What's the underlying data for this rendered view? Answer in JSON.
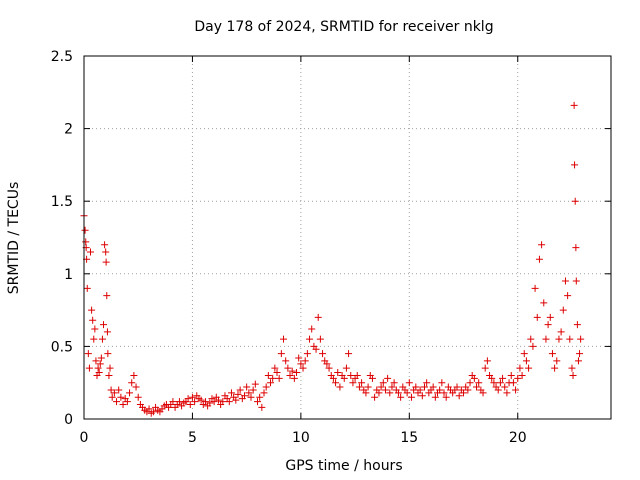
{
  "chart_data": {
    "type": "scatter",
    "title": "Day 178 of 2024, SRMTID for receiver nklg",
    "xlabel": "GPS time / hours",
    "ylabel": "SRMTID / TECUs",
    "xlim": [
      0,
      24.3
    ],
    "ylim": [
      0,
      2.5
    ],
    "x_ticks": [
      {
        "value": 0,
        "label": "0"
      },
      {
        "value": 5,
        "label": "5"
      },
      {
        "value": 10,
        "label": "10"
      },
      {
        "value": 15,
        "label": "15"
      },
      {
        "value": 20,
        "label": "20"
      }
    ],
    "y_ticks": [
      {
        "value": 0,
        "label": "0"
      },
      {
        "value": 0.5,
        "label": "0.5"
      },
      {
        "value": 1,
        "label": "1"
      },
      {
        "value": 1.5,
        "label": "1.5"
      },
      {
        "value": 2,
        "label": "2"
      },
      {
        "value": 2.5,
        "label": "2.5"
      }
    ],
    "grid": true,
    "marker": "+",
    "series": [
      {
        "name": "SRMTID",
        "color": "#dd0000",
        "x": [
          0.0,
          0.05,
          0.08,
          0.1,
          0.12,
          0.15,
          0.2,
          0.25,
          0.3,
          0.35,
          0.4,
          0.45,
          0.5,
          0.55,
          0.6,
          0.65,
          0.7,
          0.75,
          0.8,
          0.85,
          0.9,
          0.95,
          1.0,
          1.02,
          1.05,
          1.08,
          1.1,
          1.15,
          1.2,
          1.25,
          1.3,
          1.4,
          1.5,
          1.6,
          1.7,
          1.8,
          1.9,
          2.0,
          2.1,
          2.2,
          2.3,
          2.4,
          2.5,
          2.6,
          2.7,
          2.8,
          2.9,
          3.0,
          3.1,
          3.2,
          3.3,
          3.4,
          3.5,
          3.6,
          3.7,
          3.8,
          3.9,
          4.0,
          4.1,
          4.2,
          4.3,
          4.4,
          4.5,
          4.6,
          4.7,
          4.8,
          4.9,
          5.0,
          5.1,
          5.2,
          5.3,
          5.4,
          5.5,
          5.6,
          5.7,
          5.8,
          5.9,
          6.0,
          6.1,
          6.2,
          6.3,
          6.4,
          6.5,
          6.6,
          6.7,
          6.8,
          6.9,
          7.0,
          7.1,
          7.2,
          7.3,
          7.4,
          7.5,
          7.6,
          7.7,
          7.8,
          7.9,
          8.0,
          8.1,
          8.2,
          8.3,
          8.4,
          8.5,
          8.6,
          8.7,
          8.8,
          8.9,
          9.0,
          9.1,
          9.2,
          9.3,
          9.4,
          9.5,
          9.6,
          9.7,
          9.8,
          9.9,
          10.0,
          10.1,
          10.2,
          10.3,
          10.4,
          10.5,
          10.6,
          10.7,
          10.8,
          10.9,
          11.0,
          11.1,
          11.2,
          11.3,
          11.4,
          11.5,
          11.6,
          11.7,
          11.8,
          11.9,
          12.0,
          12.1,
          12.2,
          12.3,
          12.4,
          12.5,
          12.6,
          12.7,
          12.8,
          12.9,
          13.0,
          13.1,
          13.2,
          13.3,
          13.4,
          13.5,
          13.6,
          13.7,
          13.8,
          13.9,
          14.0,
          14.1,
          14.2,
          14.3,
          14.4,
          14.5,
          14.6,
          14.7,
          14.8,
          14.9,
          15.0,
          15.1,
          15.2,
          15.3,
          15.4,
          15.5,
          15.6,
          15.7,
          15.8,
          15.9,
          16.0,
          16.1,
          16.2,
          16.3,
          16.4,
          16.5,
          16.6,
          16.7,
          16.8,
          16.9,
          17.0,
          17.1,
          17.2,
          17.3,
          17.4,
          17.5,
          17.6,
          17.7,
          17.8,
          17.9,
          18.0,
          18.1,
          18.2,
          18.3,
          18.4,
          18.5,
          18.6,
          18.7,
          18.8,
          18.9,
          19.0,
          19.1,
          19.2,
          19.3,
          19.4,
          19.5,
          19.6,
          19.7,
          19.8,
          19.9,
          20.0,
          20.1,
          20.2,
          20.3,
          20.4,
          20.5,
          20.6,
          20.7,
          20.8,
          20.9,
          21.0,
          21.1,
          21.2,
          21.3,
          21.4,
          21.5,
          21.6,
          21.7,
          21.8,
          21.9,
          22.0,
          22.1,
          22.2,
          22.3,
          22.4,
          22.5,
          22.55,
          22.6,
          22.62,
          22.65,
          22.68,
          22.7,
          22.75,
          22.8,
          22.85,
          22.9
        ],
        "y": [
          1.4,
          1.3,
          1.22,
          1.18,
          1.1,
          0.9,
          0.45,
          0.35,
          1.15,
          0.75,
          0.68,
          0.55,
          0.62,
          0.4,
          0.3,
          0.35,
          0.32,
          0.38,
          0.42,
          0.55,
          0.65,
          1.2,
          1.15,
          1.08,
          0.85,
          0.6,
          0.45,
          0.3,
          0.35,
          0.2,
          0.15,
          0.18,
          0.12,
          0.2,
          0.15,
          0.1,
          0.14,
          0.12,
          0.18,
          0.25,
          0.3,
          0.22,
          0.15,
          0.1,
          0.08,
          0.06,
          0.05,
          0.07,
          0.04,
          0.05,
          0.08,
          0.06,
          0.05,
          0.07,
          0.09,
          0.1,
          0.08,
          0.1,
          0.12,
          0.08,
          0.1,
          0.12,
          0.09,
          0.11,
          0.12,
          0.14,
          0.1,
          0.15,
          0.12,
          0.16,
          0.14,
          0.13,
          0.1,
          0.12,
          0.09,
          0.11,
          0.14,
          0.12,
          0.15,
          0.13,
          0.1,
          0.12,
          0.16,
          0.14,
          0.12,
          0.18,
          0.15,
          0.13,
          0.17,
          0.2,
          0.14,
          0.16,
          0.22,
          0.18,
          0.15,
          0.2,
          0.24,
          0.12,
          0.15,
          0.08,
          0.18,
          0.22,
          0.3,
          0.25,
          0.28,
          0.35,
          0.32,
          0.28,
          0.45,
          0.55,
          0.4,
          0.35,
          0.3,
          0.33,
          0.28,
          0.32,
          0.42,
          0.38,
          0.35,
          0.4,
          0.45,
          0.55,
          0.62,
          0.5,
          0.48,
          0.7,
          0.55,
          0.45,
          0.4,
          0.38,
          0.35,
          0.3,
          0.28,
          0.25,
          0.32,
          0.22,
          0.3,
          0.28,
          0.35,
          0.45,
          0.3,
          0.25,
          0.28,
          0.3,
          0.22,
          0.25,
          0.2,
          0.18,
          0.22,
          0.3,
          0.28,
          0.15,
          0.2,
          0.18,
          0.22,
          0.25,
          0.2,
          0.28,
          0.18,
          0.22,
          0.25,
          0.2,
          0.18,
          0.15,
          0.22,
          0.2,
          0.18,
          0.25,
          0.15,
          0.2,
          0.22,
          0.18,
          0.2,
          0.16,
          0.22,
          0.25,
          0.18,
          0.2,
          0.22,
          0.15,
          0.18,
          0.2,
          0.25,
          0.18,
          0.15,
          0.22,
          0.2,
          0.18,
          0.2,
          0.22,
          0.16,
          0.2,
          0.18,
          0.22,
          0.2,
          0.25,
          0.3,
          0.28,
          0.22,
          0.25,
          0.2,
          0.18,
          0.35,
          0.4,
          0.3,
          0.28,
          0.25,
          0.22,
          0.2,
          0.25,
          0.28,
          0.22,
          0.18,
          0.25,
          0.3,
          0.25,
          0.2,
          0.28,
          0.35,
          0.3,
          0.45,
          0.4,
          0.35,
          0.55,
          0.5,
          0.9,
          0.7,
          1.1,
          1.2,
          0.8,
          0.55,
          0.65,
          0.7,
          0.45,
          0.35,
          0.4,
          0.55,
          0.6,
          0.75,
          0.95,
          0.85,
          0.55,
          0.35,
          0.3,
          2.16,
          1.75,
          1.5,
          1.18,
          0.95,
          0.65,
          0.4,
          0.45,
          0.55
        ]
      }
    ]
  }
}
